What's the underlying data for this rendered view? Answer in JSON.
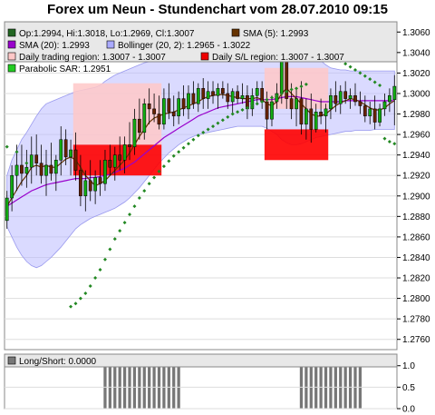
{
  "title": "Forex um Neun - Stundenchart vom 28.07.2010 09:15",
  "colors": {
    "up": "#11aa11",
    "down": "#662200",
    "sma5": "#663300",
    "sma20": "#9900cc",
    "bollinger_fill": "#bbbbff",
    "sar": "#228822",
    "trading_region": "#ffc8c8",
    "sl_region": "#ff0000",
    "longshort": "#777777"
  },
  "legend": [
    {
      "label": "Op:1.2994, Hi:1.3018, Lo:1.2969, Cl:1.3007",
      "color": "#226622"
    },
    {
      "label": "SMA (5): 1.2993",
      "color": "#663300"
    },
    {
      "label": "SMA (20): 1.2993",
      "color": "#9900cc"
    },
    {
      "label": "Bollinger (20, 2): 1.2965 - 1.3022",
      "color": "#aaaaff"
    },
    {
      "label": "Daily trading region: 1.3007 - 1.3007",
      "color": "#ffc8c8"
    },
    {
      "label": "Daily S/L region: 1.3007 - 1.3007",
      "color": "#ee0000"
    },
    {
      "label": "Parabolic SAR: 1.2951",
      "color": "#22cc22"
    }
  ],
  "sub_legend": {
    "label": "Long/Short: 0.0000",
    "color": "#777777"
  },
  "chart_data": [
    {
      "type": "candlestick",
      "title": "Forex um Neun - Stundenchart vom 28.07.2010 09:15",
      "ylim": [
        1.275,
        1.307
      ],
      "yticks": [
        "1.2760",
        "1.2780",
        "1.2800",
        "1.2820",
        "1.2840",
        "1.2860",
        "1.2880",
        "1.2900",
        "1.2920",
        "1.2940",
        "1.2960",
        "1.2980",
        "1.3000",
        "1.3020",
        "1.3040",
        "1.3060"
      ],
      "candles": [
        [
          1.2876,
          1.2905,
          1.2868,
          1.2898
        ],
        [
          1.2898,
          1.293,
          1.2885,
          1.292
        ],
        [
          1.292,
          1.295,
          1.2905,
          1.293
        ],
        [
          1.293,
          1.295,
          1.291,
          1.2922
        ],
        [
          1.2922,
          1.2945,
          1.2908,
          1.2928
        ],
        [
          1.2928,
          1.2958,
          1.2912,
          1.294
        ],
        [
          1.294,
          1.296,
          1.292,
          1.2932
        ],
        [
          1.2932,
          1.295,
          1.2912,
          1.292
        ],
        [
          1.292,
          1.2945,
          1.29,
          1.293
        ],
        [
          1.293,
          1.2952,
          1.2915,
          1.2922
        ],
        [
          1.2922,
          1.294,
          1.2905,
          1.2935
        ],
        [
          1.2935,
          1.2968,
          1.292,
          1.2955
        ],
        [
          1.2955,
          1.2965,
          1.293,
          1.2938
        ],
        [
          1.2938,
          1.2955,
          1.292,
          1.2945
        ],
        [
          1.2945,
          1.2962,
          1.2915,
          1.2925
        ],
        [
          1.2925,
          1.294,
          1.289,
          1.29
        ],
        [
          1.29,
          1.2925,
          1.2885,
          1.2915
        ],
        [
          1.2915,
          1.2935,
          1.2895,
          1.2905
        ],
        [
          1.2905,
          1.2925,
          1.2892,
          1.2918
        ],
        [
          1.2918,
          1.2935,
          1.29,
          1.2912
        ],
        [
          1.2912,
          1.2945,
          1.2905,
          1.2935
        ],
        [
          1.2935,
          1.295,
          1.292,
          1.2928
        ],
        [
          1.2928,
          1.2948,
          1.2915,
          1.294
        ],
        [
          1.294,
          1.2958,
          1.2925,
          1.2935
        ],
        [
          1.2935,
          1.2958,
          1.2922,
          1.295
        ],
        [
          1.295,
          1.2972,
          1.2935,
          1.2948
        ],
        [
          1.2948,
          1.2985,
          1.294,
          1.2975
        ],
        [
          1.2975,
          1.2995,
          1.2955,
          1.2962
        ],
        [
          1.2962,
          1.2995,
          1.2955,
          1.299
        ],
        [
          1.299,
          1.3005,
          1.297,
          1.2985
        ],
        [
          1.2985,
          1.3,
          1.2972,
          1.298
        ],
        [
          1.298,
          1.2998,
          1.2965,
          1.297
        ],
        [
          1.297,
          1.3005,
          1.2965,
          1.2995
        ],
        [
          1.2995,
          1.301,
          1.2975,
          1.2982
        ],
        [
          1.2982,
          1.2998,
          1.2968,
          1.2978
        ],
        [
          1.2978,
          1.3002,
          1.297,
          1.2995
        ],
        [
          1.2995,
          1.3008,
          1.2978,
          1.2985
        ],
        [
          1.2985,
          1.3008,
          1.2975,
          1.3
        ],
        [
          1.3,
          1.3012,
          1.2985,
          1.299
        ],
        [
          1.299,
          1.301,
          1.2982,
          1.3005
        ],
        [
          1.3005,
          1.3015,
          1.2985,
          1.2995
        ],
        [
          1.2995,
          1.3012,
          1.2985,
          1.3002
        ],
        [
          1.3002,
          1.3012,
          1.299,
          1.2998
        ],
        [
          1.2998,
          1.301,
          1.2985,
          1.3005
        ],
        [
          1.3005,
          1.3012,
          1.2995,
          1.3
        ],
        [
          1.3,
          1.301,
          1.2985,
          1.2992
        ],
        [
          1.2992,
          1.3005,
          1.298,
          1.3002
        ],
        [
          1.3002,
          1.3008,
          1.299,
          1.2995
        ],
        [
          1.2995,
          1.301,
          1.299,
          1.2998
        ],
        [
          1.2998,
          1.3008,
          1.2975,
          1.2985
        ],
        [
          1.2985,
          1.3005,
          1.2978,
          1.2998
        ],
        [
          1.2998,
          1.3012,
          1.299,
          1.3005
        ],
        [
          1.3005,
          1.3012,
          1.2985,
          1.2992
        ],
        [
          1.2992,
          1.3002,
          1.2965,
          1.2975
        ],
        [
          1.2975,
          1.2998,
          1.2968,
          1.2992
        ],
        [
          1.2992,
          1.301,
          1.2985,
          1.3
        ],
        [
          1.3,
          1.3045,
          1.299,
          1.3038
        ],
        [
          1.3038,
          1.305,
          1.2985,
          1.2995
        ],
        [
          1.2995,
          1.301,
          1.2975,
          1.2985
        ],
        [
          1.2985,
          1.3005,
          1.2968,
          1.2995
        ],
        [
          1.2995,
          1.3012,
          1.296,
          1.297
        ],
        [
          1.297,
          1.2995,
          1.2955,
          1.2985
        ],
        [
          1.2985,
          1.3,
          1.2952,
          1.2965
        ],
        [
          1.2965,
          1.299,
          1.2962,
          1.2982
        ],
        [
          1.2982,
          1.2995,
          1.297,
          1.2978
        ],
        [
          1.2978,
          1.299,
          1.2962,
          1.2985
        ],
        [
          1.2985,
          1.3005,
          1.2975,
          1.2998
        ],
        [
          1.2998,
          1.3012,
          1.2982,
          1.299
        ],
        [
          1.299,
          1.3008,
          1.298,
          1.3002
        ],
        [
          1.3002,
          1.3012,
          1.299,
          1.2995
        ],
        [
          1.2995,
          1.3005,
          1.2985,
          1.2998
        ],
        [
          1.2998,
          1.301,
          1.2988,
          1.2992
        ],
        [
          1.2992,
          1.3002,
          1.298,
          1.2988
        ],
        [
          1.2988,
          1.2998,
          1.2972,
          1.2978
        ],
        [
          1.2978,
          1.2992,
          1.297,
          1.2985
        ],
        [
          1.2985,
          1.2998,
          1.2965,
          1.2972
        ],
        [
          1.2972,
          1.299,
          1.2968,
          1.2985
        ],
        [
          1.2985,
          1.3,
          1.2978,
          1.2992
        ],
        [
          1.2992,
          1.3005,
          1.2982,
          1.2998
        ],
        [
          1.2994,
          1.3018,
          1.2969,
          1.3007
        ]
      ],
      "sma5": [
        1.289,
        1.2898,
        1.2906,
        1.2914,
        1.292,
        1.2928,
        1.293,
        1.2928,
        1.293,
        1.2928,
        1.2928,
        1.2932,
        1.2936,
        1.2938,
        1.2935,
        1.2928,
        1.292,
        1.2915,
        1.291,
        1.2912,
        1.2915,
        1.292,
        1.2925,
        1.293,
        1.2935,
        1.2942,
        1.295,
        1.2958,
        1.2965,
        1.2972,
        1.2976,
        1.2978,
        1.298,
        1.2981,
        1.2982,
        1.2984,
        1.2986,
        1.2988,
        1.299,
        1.2992,
        1.2995,
        1.2997,
        1.2998,
        1.2999,
        1.2999,
        1.2998,
        1.2997,
        1.2996,
        1.2995,
        1.2995,
        1.2995,
        1.2996,
        1.2994,
        1.299,
        1.2988,
        1.2992,
        1.3,
        1.3005,
        1.3,
        1.2995,
        1.299,
        1.2985,
        1.298,
        1.2978,
        1.2978,
        1.298,
        1.2984,
        1.2988,
        1.2991,
        1.2993,
        1.2995,
        1.2994,
        1.2992,
        1.2989,
        1.2986,
        1.2984,
        1.2984,
        1.2986,
        1.299,
        1.2993
      ],
      "sma20": [
        1.289,
        1.2893,
        1.2896,
        1.2899,
        1.2902,
        1.2905,
        1.2907,
        1.2909,
        1.2911,
        1.2912,
        1.2913,
        1.2914,
        1.2915,
        1.2916,
        1.2917,
        1.2917,
        1.2917,
        1.2918,
        1.2918,
        1.2919,
        1.292,
        1.2921,
        1.2923,
        1.2925,
        1.2927,
        1.293,
        1.2933,
        1.2937,
        1.2941,
        1.2945,
        1.2949,
        1.2953,
        1.2957,
        1.296,
        1.2963,
        1.2966,
        1.2969,
        1.2972,
        1.2975,
        1.2978,
        1.298,
        1.2982,
        1.2984,
        1.2986,
        1.2987,
        1.2988,
        1.2989,
        1.299,
        1.2991,
        1.2992,
        1.2993,
        1.2994,
        1.2994,
        1.2994,
        1.2994,
        1.2995,
        1.2996,
        1.2997,
        1.2997,
        1.2997,
        1.2996,
        1.2995,
        1.2994,
        1.2993,
        1.2992,
        1.2992,
        1.2992,
        1.2992,
        1.2992,
        1.2993,
        1.2993,
        1.2993,
        1.2993,
        1.2993,
        1.2993,
        1.2993,
        1.2993,
        1.2993,
        1.2993,
        1.2993
      ],
      "boll_upper": [
        1.292,
        1.2935,
        1.2945,
        1.2955,
        1.2962,
        1.297,
        1.2978,
        1.2985,
        1.299,
        1.2992,
        1.2994,
        1.2996,
        1.2998,
        1.3,
        1.3002,
        1.3003,
        1.3004,
        1.3005,
        1.3006,
        1.3008,
        1.3012,
        1.3015,
        1.3018,
        1.302,
        1.3022,
        1.3024,
        1.3026,
        1.3028,
        1.303,
        1.3031,
        1.3032,
        1.3033,
        1.3034,
        1.3035,
        1.3036,
        1.3037,
        1.3038,
        1.3039,
        1.304,
        1.3041,
        1.3042,
        1.3042,
        1.3042,
        1.3042,
        1.3042,
        1.3042,
        1.3042,
        1.3042,
        1.3042,
        1.3042,
        1.3042,
        1.3042,
        1.3042,
        1.3042,
        1.3042,
        1.3042,
        1.3042,
        1.3042,
        1.3042,
        1.3042,
        1.3042,
        1.3042,
        1.304,
        1.3036,
        1.3032,
        1.3028,
        1.3025,
        1.3024,
        1.3023,
        1.3023,
        1.3022,
        1.3022,
        1.3022,
        1.3022,
        1.3022,
        1.3022,
        1.3022,
        1.3022,
        1.3022,
        1.3022
      ],
      "boll_lower": [
        1.287,
        1.286,
        1.285,
        1.2842,
        1.2836,
        1.2832,
        1.283,
        1.2832,
        1.2836,
        1.284,
        1.2845,
        1.285,
        1.2856,
        1.2862,
        1.2868,
        1.2872,
        1.2875,
        1.2878,
        1.288,
        1.2882,
        1.2884,
        1.2886,
        1.2888,
        1.2891,
        1.2894,
        1.2898,
        1.2903,
        1.2908,
        1.2914,
        1.292,
        1.2926,
        1.2932,
        1.2937,
        1.2942,
        1.2946,
        1.295,
        1.2953,
        1.2956,
        1.2958,
        1.296,
        1.2961,
        1.2962,
        1.2963,
        1.2964,
        1.2965,
        1.2966,
        1.2967,
        1.2968,
        1.2968,
        1.2968,
        1.2968,
        1.2968,
        1.2968,
        1.2966,
        1.2963,
        1.296,
        1.2955,
        1.2952,
        1.295,
        1.295,
        1.2951,
        1.2953,
        1.2955,
        1.2957,
        1.2958,
        1.2959,
        1.296,
        1.2961,
        1.2962,
        1.2963,
        1.2963,
        1.2964,
        1.2964,
        1.2964,
        1.2964,
        1.2965,
        1.2965,
        1.2965,
        1.2965,
        1.2965
      ],
      "sar": [
        1.2948,
        null,
        1.2943,
        null,
        1.2932,
        null,
        null,
        null,
        null,
        null,
        null,
        null,
        null,
        1.2792,
        1.2795,
        1.28,
        1.2805,
        1.2812,
        1.282,
        1.2828,
        1.2838,
        1.2848,
        1.2858,
        1.2866,
        1.2874,
        1.2882,
        1.289,
        1.2898,
        1.2905,
        1.2912,
        1.2918,
        1.2924,
        1.2929,
        1.2934,
        1.2939,
        1.2943,
        1.2947,
        1.2951,
        1.2955,
        1.2959,
        1.2962,
        1.2965,
        1.2968,
        1.2971,
        1.2974,
        1.2977,
        1.298,
        1.2982,
        1.2984,
        1.2986,
        1.2988,
        1.299,
        1.2992,
        1.2994,
        1.2996,
        1.2998,
        1.3,
        1.3002,
        1.3004,
        1.3005,
        1.3007,
        1.3009,
        1.305,
        1.3047,
        1.3044,
        1.3041,
        1.3038,
        1.3035,
        1.3032,
        1.3029,
        1.3026,
        1.3023,
        1.302,
        1.3017,
        1.3014,
        1.3011,
        1.3008,
        1.2956,
        1.2953,
        1.2951
      ],
      "trading_regions": [
        {
          "start": 14,
          "end": 31,
          "low": 1.295,
          "high": 1.301
        },
        {
          "start": 53,
          "end": 65,
          "low": 1.2985,
          "high": 1.3025
        }
      ],
      "sl_regions": [
        {
          "start": 14,
          "end": 31,
          "low": 1.292,
          "high": 1.295
        },
        {
          "start": 53,
          "end": 65,
          "low": 1.2935,
          "high": 1.2965
        }
      ]
    },
    {
      "type": "bar",
      "title": "",
      "series": [
        {
          "name": "Long/Short",
          "values": [
            0,
            0,
            0,
            0,
            0,
            0,
            0,
            0,
            0,
            0,
            0,
            0,
            0,
            0,
            0,
            0,
            0,
            0,
            0,
            0,
            1,
            1,
            1,
            1,
            1,
            1,
            1,
            1,
            1,
            1,
            1,
            1,
            1,
            1,
            1,
            1,
            0,
            0,
            0,
            0,
            0,
            0,
            0,
            0,
            0,
            0,
            0,
            0,
            0,
            0,
            0,
            0,
            0,
            0,
            0,
            0,
            0,
            0,
            0,
            0,
            1,
            1,
            1,
            1,
            1,
            1,
            1,
            1,
            1,
            1,
            1,
            1,
            1,
            0,
            0,
            0,
            0,
            0,
            0,
            0
          ]
        }
      ],
      "ylim": [
        0,
        1.1
      ],
      "yticks": [
        "0.0",
        "0.5",
        "1.0"
      ]
    }
  ]
}
